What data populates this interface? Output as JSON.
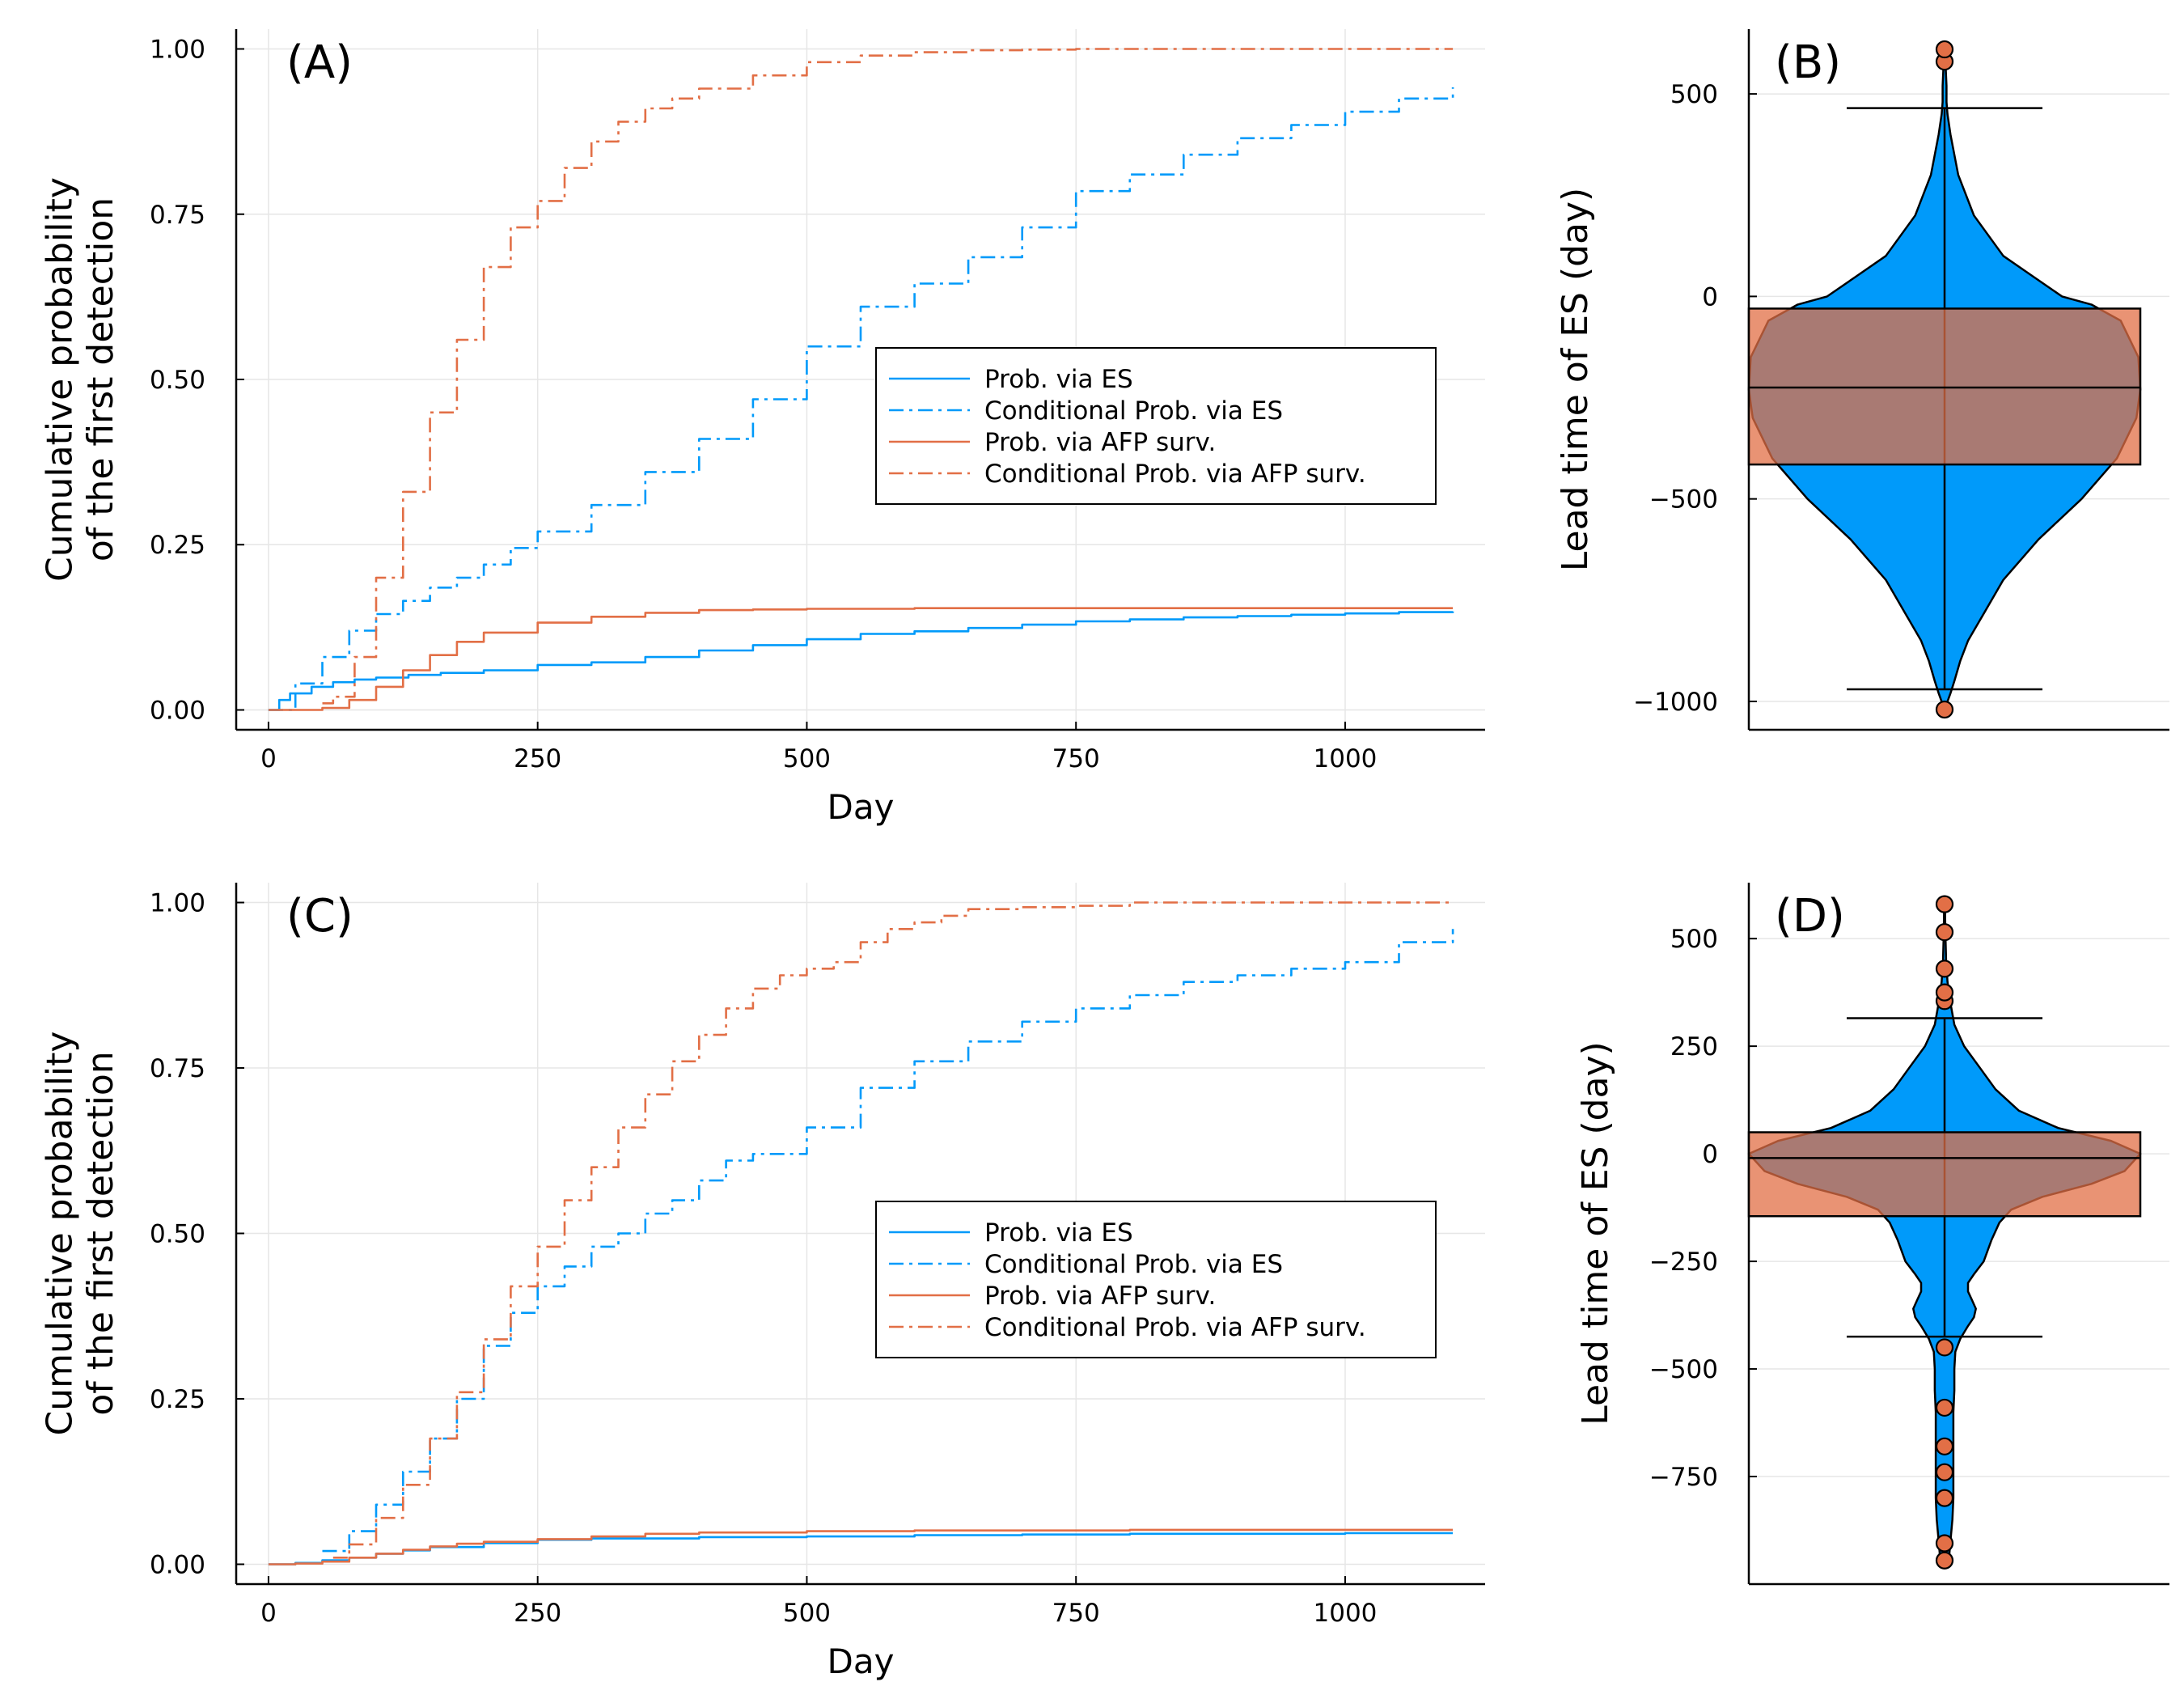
{
  "colors": {
    "es": "#009AFA",
    "afp": "#E26F46",
    "box_fill": "#E26F46",
    "violin_fill": "#009AFA",
    "grid": "#E6E6E6",
    "axis": "#000000"
  },
  "legend_labels": [
    "Prob. via ES",
    "Conditional Prob. via ES",
    "Prob. via AFP surv.",
    "Conditional Prob. via AFP surv."
  ],
  "chart_data": [
    {
      "type": "line",
      "panel_label": "(A)",
      "xlabel": "Day",
      "ylabel": [
        "Cumulative probability",
        "of the first detection"
      ],
      "xlim": [
        -30,
        1130
      ],
      "ylim": [
        -0.03,
        1.03
      ],
      "xticks": [
        0,
        250,
        500,
        750,
        1000
      ],
      "yticks": [
        0.0,
        0.25,
        0.5,
        0.75,
        1.0
      ],
      "xtick_labels": [
        "0",
        "250",
        "500",
        "750",
        "1000"
      ],
      "ytick_labels": [
        "0.00",
        "0.25",
        "0.50",
        "0.75",
        "1.00"
      ],
      "grid": true,
      "legend": "right",
      "series": [
        {
          "name": "Prob. via ES",
          "style": "solid",
          "color": "#009AFA",
          "x": [
            0,
            10,
            20,
            40,
            60,
            80,
            100,
            130,
            160,
            200,
            250,
            300,
            350,
            400,
            450,
            500,
            550,
            600,
            650,
            700,
            750,
            800,
            850,
            900,
            950,
            1000,
            1050,
            1100
          ],
          "y": [
            0,
            0.015,
            0.025,
            0.035,
            0.042,
            0.046,
            0.049,
            0.053,
            0.056,
            0.06,
            0.068,
            0.072,
            0.08,
            0.09,
            0.098,
            0.107,
            0.115,
            0.119,
            0.124,
            0.129,
            0.134,
            0.137,
            0.14,
            0.142,
            0.144,
            0.146,
            0.148,
            0.149
          ]
        },
        {
          "name": "Conditional Prob. via ES",
          "style": "dashdot",
          "color": "#009AFA",
          "x": [
            0,
            25,
            50,
            75,
            100,
            125,
            150,
            175,
            200,
            225,
            250,
            300,
            350,
            400,
            450,
            500,
            550,
            600,
            650,
            700,
            750,
            800,
            850,
            900,
            950,
            1000,
            1050,
            1100
          ],
          "y": [
            0,
            0.04,
            0.08,
            0.12,
            0.145,
            0.165,
            0.185,
            0.2,
            0.22,
            0.245,
            0.27,
            0.31,
            0.36,
            0.41,
            0.47,
            0.55,
            0.61,
            0.645,
            0.685,
            0.73,
            0.785,
            0.81,
            0.84,
            0.865,
            0.885,
            0.905,
            0.925,
            0.942
          ]
        },
        {
          "name": "Prob. via AFP surv.",
          "style": "solid",
          "color": "#E26F46",
          "x": [
            0,
            25,
            50,
            75,
            100,
            125,
            150,
            175,
            200,
            250,
            300,
            350,
            400,
            450,
            500,
            550,
            600,
            700,
            800,
            900,
            1000,
            1100
          ],
          "y": [
            0,
            0,
            0.003,
            0.015,
            0.035,
            0.06,
            0.083,
            0.103,
            0.117,
            0.132,
            0.141,
            0.147,
            0.151,
            0.152,
            0.153,
            0.153,
            0.154,
            0.154,
            0.154,
            0.154,
            0.154,
            0.154
          ]
        },
        {
          "name": "Conditional Prob. via AFP surv.",
          "style": "dashdot",
          "color": "#E26F46",
          "x": [
            50,
            60,
            80,
            100,
            125,
            150,
            175,
            200,
            225,
            250,
            275,
            300,
            325,
            350,
            375,
            400,
            450,
            500,
            550,
            600,
            650,
            700,
            750,
            800,
            900,
            1000,
            1100
          ],
          "y": [
            0.01,
            0.02,
            0.08,
            0.2,
            0.33,
            0.45,
            0.56,
            0.67,
            0.73,
            0.77,
            0.82,
            0.86,
            0.89,
            0.91,
            0.925,
            0.94,
            0.96,
            0.98,
            0.99,
            0.995,
            0.998,
            0.999,
            1.0,
            1.0,
            1.0,
            1.0,
            1.0
          ]
        }
      ]
    },
    {
      "type": "violin",
      "panel_label": "(B)",
      "ylabel": "Lead time of ES (day)",
      "ylim": [
        -1070,
        660
      ],
      "yticks": [
        -1000,
        -500,
        0,
        500
      ],
      "ytick_labels": [
        "−1000",
        "−500",
        "0",
        "500"
      ],
      "grid": true,
      "violin_profile": {
        "y": [
          -1020,
          -980,
          -950,
          -900,
          -850,
          -800,
          -700,
          -600,
          -500,
          -400,
          -300,
          -230,
          -150,
          -60,
          -20,
          0,
          50,
          100,
          200,
          300,
          350,
          400,
          450,
          480,
          520,
          560,
          600
        ],
        "w": [
          0.0,
          0.03,
          0.05,
          0.08,
          0.12,
          0.18,
          0.3,
          0.48,
          0.7,
          0.88,
          0.98,
          1.0,
          0.99,
          0.9,
          0.75,
          0.6,
          0.45,
          0.3,
          0.15,
          0.07,
          0.05,
          0.03,
          0.015,
          0.01,
          0.01,
          0.006,
          0.005
        ]
      },
      "box": {
        "q1": -415,
        "median": -225,
        "q3": -30,
        "whisker_low": -970,
        "whisker_high": 465
      },
      "outliers": [
        -1020,
        580,
        610
      ]
    },
    {
      "type": "line",
      "panel_label": "(C)",
      "xlabel": "Day",
      "ylabel": [
        "Cumulative probability",
        "of the first detection"
      ],
      "xlim": [
        -30,
        1130
      ],
      "ylim": [
        -0.03,
        1.03
      ],
      "xticks": [
        0,
        250,
        500,
        750,
        1000
      ],
      "yticks": [
        0.0,
        0.25,
        0.5,
        0.75,
        1.0
      ],
      "xtick_labels": [
        "0",
        "250",
        "500",
        "750",
        "1000"
      ],
      "ytick_labels": [
        "0.00",
        "0.25",
        "0.50",
        "0.75",
        "1.00"
      ],
      "grid": true,
      "legend": "right",
      "series": [
        {
          "name": "Prob. via ES",
          "style": "solid",
          "color": "#009AFA",
          "x": [
            0,
            25,
            50,
            75,
            100,
            125,
            150,
            200,
            250,
            300,
            400,
            500,
            600,
            700,
            800,
            900,
            1000,
            1100
          ],
          "y": [
            0,
            0.002,
            0.006,
            0.01,
            0.016,
            0.021,
            0.026,
            0.032,
            0.037,
            0.039,
            0.041,
            0.042,
            0.044,
            0.045,
            0.046,
            0.046,
            0.047,
            0.047
          ]
        },
        {
          "name": "Conditional Prob. via ES",
          "style": "dashdot",
          "color": "#009AFA",
          "x": [
            50,
            75,
            100,
            125,
            150,
            175,
            200,
            225,
            250,
            275,
            300,
            325,
            350,
            375,
            400,
            425,
            450,
            500,
            550,
            600,
            650,
            700,
            750,
            800,
            850,
            900,
            950,
            1000,
            1050,
            1100
          ],
          "y": [
            0.02,
            0.05,
            0.09,
            0.14,
            0.19,
            0.25,
            0.33,
            0.38,
            0.42,
            0.45,
            0.48,
            0.5,
            0.53,
            0.55,
            0.58,
            0.61,
            0.62,
            0.66,
            0.72,
            0.76,
            0.79,
            0.82,
            0.84,
            0.86,
            0.88,
            0.89,
            0.9,
            0.91,
            0.94,
            0.96
          ]
        },
        {
          "name": "Prob. via AFP surv.",
          "style": "solid",
          "color": "#E26F46",
          "x": [
            0,
            25,
            50,
            75,
            100,
            125,
            150,
            175,
            200,
            250,
            300,
            350,
            400,
            500,
            600,
            700,
            800,
            900,
            1000,
            1100
          ],
          "y": [
            0,
            0.001,
            0.004,
            0.01,
            0.016,
            0.022,
            0.027,
            0.031,
            0.034,
            0.038,
            0.042,
            0.046,
            0.048,
            0.05,
            0.051,
            0.051,
            0.052,
            0.052,
            0.052,
            0.052
          ]
        },
        {
          "name": "Conditional Prob. via AFP surv.",
          "style": "dashdot",
          "color": "#E26F46",
          "x": [
            60,
            75,
            100,
            125,
            150,
            175,
            200,
            225,
            250,
            275,
            300,
            325,
            350,
            375,
            400,
            425,
            450,
            475,
            500,
            525,
            550,
            575,
            600,
            625,
            650,
            700,
            750,
            800,
            900,
            1000,
            1100
          ],
          "y": [
            0.01,
            0.03,
            0.07,
            0.12,
            0.19,
            0.26,
            0.34,
            0.42,
            0.48,
            0.55,
            0.6,
            0.66,
            0.71,
            0.76,
            0.8,
            0.84,
            0.87,
            0.89,
            0.9,
            0.91,
            0.94,
            0.96,
            0.97,
            0.98,
            0.99,
            0.993,
            0.995,
            1.0,
            1.0,
            1.0,
            1.0
          ]
        }
      ]
    },
    {
      "type": "violin",
      "panel_label": "(D)",
      "ylabel": "Lead time of ES (day)",
      "ylim": [
        -1000,
        630
      ],
      "yticks": [
        -750,
        -500,
        -250,
        0,
        250,
        500
      ],
      "ytick_labels": [
        "−750",
        "−500",
        "−250",
        "0",
        "250",
        "500"
      ],
      "grid": true,
      "violin_profile": {
        "y": [
          -955,
          -900,
          -850,
          -800,
          -750,
          -700,
          -650,
          -600,
          -550,
          -500,
          -460,
          -430,
          -400,
          -380,
          -360,
          -340,
          -320,
          -300,
          -280,
          -250,
          -200,
          -160,
          -130,
          -100,
          -70,
          -40,
          0,
          30,
          60,
          100,
          150,
          200,
          250,
          300,
          350,
          400,
          450,
          500,
          550,
          580
        ],
        "w": [
          0.02,
          0.03,
          0.04,
          0.045,
          0.045,
          0.045,
          0.045,
          0.045,
          0.05,
          0.05,
          0.055,
          0.08,
          0.12,
          0.15,
          0.16,
          0.14,
          0.12,
          0.12,
          0.15,
          0.2,
          0.24,
          0.28,
          0.34,
          0.5,
          0.75,
          0.92,
          1.0,
          0.85,
          0.58,
          0.38,
          0.26,
          0.18,
          0.1,
          0.05,
          0.03,
          0.015,
          0.008,
          0.005,
          0.003,
          0.002
        ]
      },
      "box": {
        "q1": -145,
        "median": -10,
        "q3": 50,
        "whisker_low": -425,
        "whisker_high": 315
      },
      "outliers": [
        -945,
        -905,
        -800,
        -740,
        -680,
        -590,
        -450,
        355,
        375,
        430,
        515,
        580
      ]
    }
  ]
}
